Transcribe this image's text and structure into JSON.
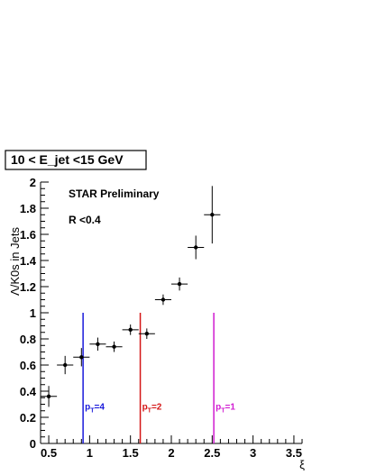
{
  "chart_data": {
    "type": "scatter",
    "title": "10 < E_jet <15 GeV",
    "xlabel": "ξ",
    "ylabel": "Λ/K0s in Jets",
    "xlim": [
      0.4,
      3.6
    ],
    "ylim": [
      0,
      2
    ],
    "x_ticks": [
      "0.5",
      "1",
      "1.5",
      "2",
      "2.5",
      "3",
      "3.5"
    ],
    "y_ticks": [
      "0",
      "0.2",
      "0.4",
      "0.6",
      "0.8",
      "1",
      "1.2",
      "1.4",
      "1.6",
      "1.8",
      "2"
    ],
    "annotations": [
      "STAR Preliminary",
      "R <0.4"
    ],
    "grid": false,
    "series": [
      {
        "points": [
          {
            "x": 0.5,
            "y": 0.36,
            "xerr": 0.1,
            "yerr": 0.08
          },
          {
            "x": 0.7,
            "y": 0.6,
            "xerr": 0.1,
            "yerr": 0.07
          },
          {
            "x": 0.9,
            "y": 0.66,
            "xerr": 0.1,
            "yerr": 0.07
          },
          {
            "x": 1.1,
            "y": 0.76,
            "xerr": 0.1,
            "yerr": 0.05
          },
          {
            "x": 1.3,
            "y": 0.74,
            "xerr": 0.1,
            "yerr": 0.04
          },
          {
            "x": 1.5,
            "y": 0.87,
            "xerr": 0.1,
            "yerr": 0.04
          },
          {
            "x": 1.7,
            "y": 0.84,
            "xerr": 0.1,
            "yerr": 0.04
          },
          {
            "x": 1.9,
            "y": 1.1,
            "xerr": 0.1,
            "yerr": 0.04
          },
          {
            "x": 2.1,
            "y": 1.22,
            "xerr": 0.1,
            "yerr": 0.05
          },
          {
            "x": 2.3,
            "y": 1.5,
            "xerr": 0.1,
            "yerr": 0.09
          },
          {
            "x": 2.5,
            "y": 1.75,
            "xerr": 0.1,
            "yerr": 0.22
          }
        ]
      }
    ],
    "reference_lines": [
      {
        "x": 0.92,
        "y_top": 1.0,
        "label_main": "p",
        "label_sub": "T",
        "label_rest": "=4",
        "color": "#1a1adb"
      },
      {
        "x": 1.62,
        "y_top": 1.0,
        "label_main": "p",
        "label_sub": "T",
        "label_rest": "=2",
        "color": "#d41515"
      },
      {
        "x": 2.52,
        "y_top": 1.0,
        "label_main": "p",
        "label_sub": "T",
        "label_rest": "=1",
        "color": "#d11bd1"
      }
    ]
  }
}
